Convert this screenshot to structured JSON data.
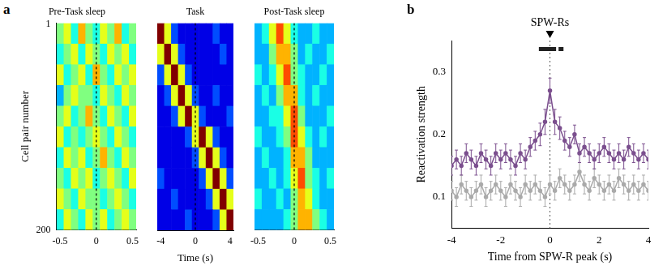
{
  "chart_data": [
    {
      "type": "heatmap",
      "panel": "a",
      "title": "Pre-Task sleep",
      "ylabel": "Cell pair number",
      "x": [
        -0.5,
        -0.4,
        -0.3,
        -0.2,
        -0.1,
        0,
        0.1,
        0.2,
        0.3,
        0.4,
        0.5
      ],
      "y": [
        10,
        30,
        50,
        70,
        90,
        110,
        130,
        150,
        170,
        190
      ],
      "xlim": [
        -0.55,
        0.55
      ],
      "xticks": [
        -0.5,
        0,
        0.5
      ],
      "ylim": [
        0,
        200
      ],
      "yticks": [
        1,
        200
      ],
      "reference_line_x": 0,
      "color_range": [
        0,
        1
      ],
      "cells": [
        [
          0.5,
          0.6,
          0.4,
          0.7,
          0.5,
          0.4,
          0.6,
          0.5,
          0.7,
          0.4,
          0.5
        ],
        [
          0.4,
          0.5,
          0.6,
          0.4,
          0.6,
          0.5,
          0.4,
          0.6,
          0.5,
          0.6,
          0.4
        ],
        [
          0.6,
          0.4,
          0.5,
          0.6,
          0.4,
          0.7,
          0.5,
          0.4,
          0.6,
          0.5,
          0.6
        ],
        [
          0.3,
          0.5,
          0.6,
          0.5,
          0.5,
          0.4,
          0.6,
          0.5,
          0.4,
          0.6,
          0.5
        ],
        [
          0.5,
          0.6,
          0.4,
          0.5,
          0.7,
          0.5,
          0.4,
          0.6,
          0.5,
          0.4,
          0.6
        ],
        [
          0.6,
          0.4,
          0.5,
          0.4,
          0.5,
          0.6,
          0.5,
          0.4,
          0.6,
          0.5,
          0.4
        ],
        [
          0.4,
          0.6,
          0.5,
          0.6,
          0.4,
          0.5,
          0.7,
          0.5,
          0.4,
          0.6,
          0.5
        ],
        [
          0.5,
          0.4,
          0.6,
          0.5,
          0.6,
          0.4,
          0.5,
          0.6,
          0.5,
          0.4,
          0.6
        ],
        [
          0.6,
          0.5,
          0.4,
          0.6,
          0.5,
          0.5,
          0.4,
          0.5,
          0.6,
          0.5,
          0.4
        ],
        [
          0.4,
          0.6,
          0.5,
          0.4,
          0.6,
          0.5,
          0.6,
          0.4,
          0.5,
          0.6,
          0.5
        ]
      ]
    },
    {
      "type": "heatmap",
      "title": "Task",
      "xlabel": "Time (s)",
      "tick_labels": "x",
      "x": [
        -4,
        -3.2,
        -2.4,
        -1.6,
        -0.8,
        0,
        0.8,
        1.6,
        2.4,
        3.2,
        4
      ],
      "y": [
        10,
        30,
        50,
        70,
        90,
        110,
        130,
        150,
        170,
        190
      ],
      "xlim": [
        -4.4,
        4.4
      ],
      "xticks": [
        -4,
        0,
        4
      ],
      "ylim": [
        0,
        200
      ],
      "reference_line_x": 0,
      "color_range": [
        0,
        1
      ],
      "cells": [
        [
          1.0,
          0.6,
          0.2,
          0.1,
          0.1,
          0.1,
          0.1,
          0.1,
          0.2,
          0.1,
          0.1
        ],
        [
          0.6,
          1.0,
          0.6,
          0.2,
          0.1,
          0.1,
          0.1,
          0.1,
          0.1,
          0.2,
          0.1
        ],
        [
          0.2,
          0.6,
          1.0,
          0.6,
          0.2,
          0.1,
          0.1,
          0.1,
          0.1,
          0.1,
          0.1
        ],
        [
          0.1,
          0.2,
          0.6,
          1.0,
          0.6,
          0.2,
          0.1,
          0.1,
          0.2,
          0.1,
          0.1
        ],
        [
          0.1,
          0.1,
          0.2,
          0.6,
          1.0,
          0.6,
          0.2,
          0.1,
          0.1,
          0.1,
          0.2
        ],
        [
          0.1,
          0.1,
          0.1,
          0.1,
          0.2,
          0.6,
          1.0,
          0.6,
          0.2,
          0.1,
          0.1
        ],
        [
          0.1,
          0.1,
          0.1,
          0.1,
          0.1,
          0.2,
          0.6,
          1.0,
          0.6,
          0.2,
          0.1
        ],
        [
          0.2,
          0.1,
          0.1,
          0.1,
          0.1,
          0.1,
          0.2,
          0.6,
          1.0,
          0.6,
          0.2
        ],
        [
          0.1,
          0.1,
          0.2,
          0.1,
          0.1,
          0.1,
          0.1,
          0.2,
          0.6,
          1.0,
          0.6
        ],
        [
          0.1,
          0.1,
          0.1,
          0.1,
          0.2,
          0.1,
          0.1,
          0.1,
          0.2,
          0.6,
          1.0
        ]
      ]
    },
    {
      "type": "heatmap",
      "title": "Post-Task sleep",
      "tick_labels": "x",
      "x": [
        -0.5,
        -0.4,
        -0.3,
        -0.2,
        -0.1,
        0,
        0.1,
        0.2,
        0.3,
        0.4,
        0.5
      ],
      "y": [
        10,
        30,
        50,
        70,
        90,
        110,
        130,
        150,
        170,
        190
      ],
      "xlim": [
        -0.55,
        0.55
      ],
      "xticks": [
        -0.5,
        0,
        0.5
      ],
      "ylim": [
        0,
        200
      ],
      "reference_line_x": 0,
      "color_range": [
        0,
        1
      ],
      "cells": [
        [
          0.3,
          0.4,
          0.6,
          0.8,
          0.6,
          0.4,
          0.3,
          0.3,
          0.4,
          0.3,
          0.3
        ],
        [
          0.3,
          0.3,
          0.5,
          0.7,
          0.7,
          0.5,
          0.3,
          0.4,
          0.3,
          0.3,
          0.4
        ],
        [
          0.4,
          0.3,
          0.4,
          0.6,
          0.8,
          0.5,
          0.4,
          0.3,
          0.3,
          0.4,
          0.3
        ],
        [
          0.3,
          0.4,
          0.3,
          0.5,
          0.7,
          0.7,
          0.4,
          0.3,
          0.4,
          0.3,
          0.3
        ],
        [
          0.3,
          0.3,
          0.4,
          0.4,
          0.6,
          0.8,
          0.5,
          0.3,
          0.3,
          0.3,
          0.4
        ],
        [
          0.4,
          0.3,
          0.3,
          0.4,
          0.5,
          0.8,
          0.6,
          0.4,
          0.3,
          0.4,
          0.3
        ],
        [
          0.3,
          0.4,
          0.3,
          0.3,
          0.4,
          0.7,
          0.7,
          0.5,
          0.3,
          0.3,
          0.3
        ],
        [
          0.3,
          0.3,
          0.4,
          0.3,
          0.4,
          0.6,
          0.8,
          0.5,
          0.4,
          0.3,
          0.4
        ],
        [
          0.4,
          0.3,
          0.3,
          0.4,
          0.3,
          0.5,
          0.7,
          0.6,
          0.4,
          0.3,
          0.3
        ],
        [
          0.3,
          0.3,
          0.3,
          0.3,
          0.4,
          0.5,
          0.7,
          0.7,
          0.5,
          0.4,
          0.3
        ]
      ]
    },
    {
      "type": "line",
      "panel": "b",
      "xlabel": "Time from SPW-R peak (s)",
      "ylabel": "Reactivation strength",
      "x": [
        -4,
        -3.8,
        -3.6,
        -3.4,
        -3.2,
        -3,
        -2.8,
        -2.6,
        -2.4,
        -2.2,
        -2,
        -1.8,
        -1.6,
        -1.4,
        -1.2,
        -1,
        -0.8,
        -0.6,
        -0.4,
        -0.2,
        0,
        0.2,
        0.4,
        0.6,
        0.8,
        1,
        1.2,
        1.4,
        1.6,
        1.8,
        2,
        2.2,
        2.4,
        2.6,
        2.8,
        3,
        3.2,
        3.4,
        3.6,
        3.8,
        4
      ],
      "xlim": [
        -4,
        4
      ],
      "xticks": [
        -4,
        -2,
        0,
        2,
        4
      ],
      "ylim": [
        0.05,
        0.35
      ],
      "yticks": [
        0.1,
        0.2,
        0.3
      ],
      "grid": false,
      "marker": "circle",
      "reference_line_x": 0,
      "annotations": [
        {
          "text": "SPW-Rs",
          "x": 0
        }
      ],
      "significance": [
        [
          -0.45,
          0.25
        ],
        [
          0.35,
          0.55
        ]
      ],
      "series": [
        {
          "color": "#aaaaaa",
          "values": [
            0.11,
            0.1,
            0.12,
            0.11,
            0.1,
            0.11,
            0.12,
            0.1,
            0.11,
            0.12,
            0.11,
            0.1,
            0.12,
            0.11,
            0.1,
            0.12,
            0.11,
            0.12,
            0.11,
            0.1,
            0.12,
            0.11,
            0.13,
            0.12,
            0.11,
            0.12,
            0.14,
            0.12,
            0.11,
            0.13,
            0.12,
            0.11,
            0.12,
            0.11,
            0.13,
            0.12,
            0.11,
            0.12,
            0.11,
            0.12,
            0.11
          ],
          "errors": [
            0.015,
            0.015,
            0.015,
            0.015,
            0.015,
            0.015,
            0.015,
            0.015,
            0.015,
            0.015,
            0.015,
            0.015,
            0.015,
            0.015,
            0.015,
            0.015,
            0.015,
            0.015,
            0.015,
            0.015,
            0.015,
            0.015,
            0.015,
            0.015,
            0.015,
            0.015,
            0.015,
            0.015,
            0.015,
            0.015,
            0.015,
            0.015,
            0.015,
            0.015,
            0.015,
            0.015,
            0.015,
            0.015,
            0.015,
            0.015,
            0.015
          ]
        },
        {
          "color": "#7b4f8e",
          "values": [
            0.15,
            0.16,
            0.15,
            0.17,
            0.16,
            0.15,
            0.17,
            0.16,
            0.15,
            0.17,
            0.16,
            0.17,
            0.16,
            0.15,
            0.17,
            0.16,
            0.18,
            0.19,
            0.2,
            0.22,
            0.27,
            0.22,
            0.21,
            0.19,
            0.18,
            0.2,
            0.17,
            0.18,
            0.17,
            0.16,
            0.17,
            0.18,
            0.17,
            0.16,
            0.17,
            0.16,
            0.18,
            0.17,
            0.16,
            0.17,
            0.16
          ],
          "errors": [
            0.015,
            0.015,
            0.015,
            0.015,
            0.015,
            0.015,
            0.015,
            0.015,
            0.015,
            0.015,
            0.015,
            0.015,
            0.015,
            0.015,
            0.015,
            0.015,
            0.015,
            0.015,
            0.018,
            0.02,
            0.02,
            0.02,
            0.018,
            0.015,
            0.015,
            0.015,
            0.015,
            0.015,
            0.015,
            0.015,
            0.015,
            0.015,
            0.015,
            0.015,
            0.015,
            0.015,
            0.015,
            0.015,
            0.015,
            0.015,
            0.015
          ]
        }
      ]
    }
  ]
}
